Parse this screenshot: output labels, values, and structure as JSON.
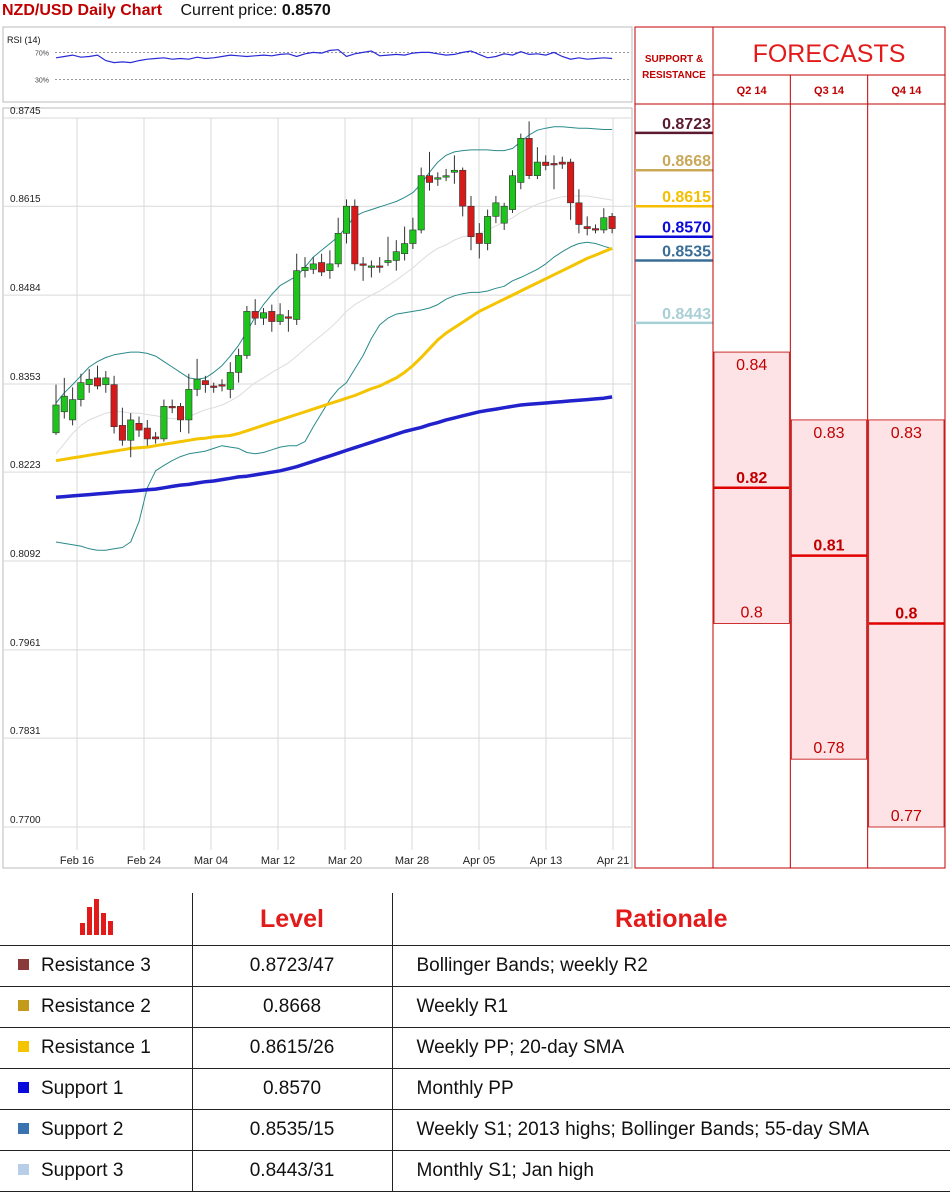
{
  "header": {
    "title": "NZD/USD Daily Chart",
    "price_label": "Current price:",
    "price_value": "0.8570"
  },
  "chart_data": {
    "type": "candlestick",
    "title": "NZD/USD Daily Chart",
    "ylim": [
      0.77,
      0.8745
    ],
    "y_ticks": [
      "0.8745",
      "0.8615",
      "0.8484",
      "0.8353",
      "0.8223",
      "0.8092",
      "0.7961",
      "0.7831",
      "0.7700"
    ],
    "x_ticks": [
      "Feb 16",
      "Feb 24",
      "Mar 04",
      "Mar 12",
      "Mar 20",
      "Mar 28",
      "Apr 05",
      "Apr 13",
      "Apr 21"
    ],
    "rsi": {
      "label": "RSI (14)",
      "levels": [
        "70%",
        "30%"
      ],
      "values": [
        62,
        64,
        66,
        63,
        64,
        66,
        58,
        55,
        56,
        55,
        58,
        60,
        61,
        62,
        60,
        61,
        60,
        63,
        61,
        62,
        64,
        66,
        65,
        64,
        65,
        66,
        65,
        67,
        68,
        64,
        68,
        70,
        69,
        73,
        74,
        64,
        68,
        70,
        72,
        65,
        66,
        67,
        66,
        69,
        70,
        70,
        68,
        66,
        67,
        70,
        72,
        67,
        62,
        64,
        68,
        66,
        71,
        67,
        68,
        66,
        70,
        64,
        60,
        62,
        60,
        61,
        62,
        61
      ]
    },
    "candles": [
      {
        "o": 0.8281,
        "c": 0.8322,
        "h": 0.8352,
        "l": 0.8278
      },
      {
        "o": 0.8312,
        "c": 0.8335,
        "h": 0.8362,
        "l": 0.8302
      },
      {
        "o": 0.83,
        "c": 0.833,
        "h": 0.8348,
        "l": 0.8292
      },
      {
        "o": 0.833,
        "c": 0.8355,
        "h": 0.8368,
        "l": 0.832
      },
      {
        "o": 0.8352,
        "c": 0.836,
        "h": 0.8375,
        "l": 0.834
      },
      {
        "o": 0.8362,
        "c": 0.835,
        "h": 0.838,
        "l": 0.8345
      },
      {
        "o": 0.8352,
        "c": 0.8362,
        "h": 0.8372,
        "l": 0.834
      },
      {
        "o": 0.8352,
        "c": 0.829,
        "h": 0.8365,
        "l": 0.828
      },
      {
        "o": 0.8292,
        "c": 0.827,
        "h": 0.8318,
        "l": 0.8262
      },
      {
        "o": 0.827,
        "c": 0.83,
        "h": 0.831,
        "l": 0.8245
      },
      {
        "o": 0.8295,
        "c": 0.8285,
        "h": 0.8305,
        "l": 0.8275
      },
      {
        "o": 0.8288,
        "c": 0.8272,
        "h": 0.83,
        "l": 0.8262
      },
      {
        "o": 0.8275,
        "c": 0.8272,
        "h": 0.8282,
        "l": 0.8265
      },
      {
        "o": 0.8272,
        "c": 0.832,
        "h": 0.833,
        "l": 0.8268
      },
      {
        "o": 0.832,
        "c": 0.8318,
        "h": 0.833,
        "l": 0.831
      },
      {
        "o": 0.832,
        "c": 0.83,
        "h": 0.8325,
        "l": 0.8282
      },
      {
        "o": 0.83,
        "c": 0.8345,
        "h": 0.8368,
        "l": 0.828
      },
      {
        "o": 0.8345,
        "c": 0.836,
        "h": 0.839,
        "l": 0.8335
      },
      {
        "o": 0.8358,
        "c": 0.8352,
        "h": 0.8365,
        "l": 0.834
      },
      {
        "o": 0.835,
        "c": 0.8348,
        "h": 0.8355,
        "l": 0.834
      },
      {
        "o": 0.8352,
        "c": 0.835,
        "h": 0.836,
        "l": 0.8342
      },
      {
        "o": 0.8345,
        "c": 0.837,
        "h": 0.8385,
        "l": 0.8332
      },
      {
        "o": 0.837,
        "c": 0.8395,
        "h": 0.8405,
        "l": 0.8355
      },
      {
        "o": 0.8395,
        "c": 0.846,
        "h": 0.8468,
        "l": 0.839
      },
      {
        "o": 0.846,
        "c": 0.845,
        "h": 0.8478,
        "l": 0.844
      },
      {
        "o": 0.845,
        "c": 0.8458,
        "h": 0.8465,
        "l": 0.844
      },
      {
        "o": 0.846,
        "c": 0.8445,
        "h": 0.847,
        "l": 0.843
      },
      {
        "o": 0.8445,
        "c": 0.8455,
        "h": 0.8472,
        "l": 0.844
      },
      {
        "o": 0.8452,
        "c": 0.845,
        "h": 0.8462,
        "l": 0.843
      },
      {
        "o": 0.8448,
        "c": 0.852,
        "h": 0.8545,
        "l": 0.844
      },
      {
        "o": 0.852,
        "c": 0.8525,
        "h": 0.854,
        "l": 0.851
      },
      {
        "o": 0.8522,
        "c": 0.853,
        "h": 0.854,
        "l": 0.8515
      },
      {
        "o": 0.8532,
        "c": 0.8518,
        "h": 0.8545,
        "l": 0.8512
      },
      {
        "o": 0.852,
        "c": 0.853,
        "h": 0.855,
        "l": 0.8508
      },
      {
        "o": 0.853,
        "c": 0.8575,
        "h": 0.8598,
        "l": 0.8525
      },
      {
        "o": 0.8575,
        "c": 0.8615,
        "h": 0.8625,
        "l": 0.856
      },
      {
        "o": 0.8615,
        "c": 0.853,
        "h": 0.8625,
        "l": 0.852
      },
      {
        "o": 0.853,
        "c": 0.8528,
        "h": 0.854,
        "l": 0.8505
      },
      {
        "o": 0.8525,
        "c": 0.8527,
        "h": 0.8535,
        "l": 0.851
      },
      {
        "o": 0.8527,
        "c": 0.8525,
        "h": 0.854,
        "l": 0.8517
      },
      {
        "o": 0.8532,
        "c": 0.8535,
        "h": 0.857,
        "l": 0.8527
      },
      {
        "o": 0.8535,
        "c": 0.8548,
        "h": 0.8565,
        "l": 0.852
      },
      {
        "o": 0.8545,
        "c": 0.856,
        "h": 0.8585,
        "l": 0.8535
      },
      {
        "o": 0.856,
        "c": 0.858,
        "h": 0.8598,
        "l": 0.8552
      },
      {
        "o": 0.858,
        "c": 0.866,
        "h": 0.8672,
        "l": 0.8575
      },
      {
        "o": 0.866,
        "c": 0.865,
        "h": 0.8695,
        "l": 0.8638
      },
      {
        "o": 0.8655,
        "c": 0.8657,
        "h": 0.8665,
        "l": 0.8645
      },
      {
        "o": 0.8658,
        "c": 0.866,
        "h": 0.867,
        "l": 0.8652
      },
      {
        "o": 0.8665,
        "c": 0.8668,
        "h": 0.869,
        "l": 0.8648
      },
      {
        "o": 0.8668,
        "c": 0.8615,
        "h": 0.8672,
        "l": 0.86
      },
      {
        "o": 0.8615,
        "c": 0.857,
        "h": 0.863,
        "l": 0.855
      },
      {
        "o": 0.8575,
        "c": 0.856,
        "h": 0.859,
        "l": 0.8538
      },
      {
        "o": 0.856,
        "c": 0.86,
        "h": 0.861,
        "l": 0.855
      },
      {
        "o": 0.86,
        "c": 0.862,
        "h": 0.863,
        "l": 0.859
      },
      {
        "o": 0.859,
        "c": 0.8615,
        "h": 0.862,
        "l": 0.858
      },
      {
        "o": 0.861,
        "c": 0.866,
        "h": 0.8668,
        "l": 0.8605
      },
      {
        "o": 0.865,
        "c": 0.8715,
        "h": 0.8722,
        "l": 0.864
      },
      {
        "o": 0.8715,
        "c": 0.866,
        "h": 0.874,
        "l": 0.8655
      },
      {
        "o": 0.866,
        "c": 0.868,
        "h": 0.8702,
        "l": 0.8655
      },
      {
        "o": 0.868,
        "c": 0.8675,
        "h": 0.869,
        "l": 0.8668
      },
      {
        "o": 0.8678,
        "c": 0.8676,
        "h": 0.869,
        "l": 0.864
      },
      {
        "o": 0.868,
        "c": 0.8677,
        "h": 0.8688,
        "l": 0.867
      },
      {
        "o": 0.868,
        "c": 0.862,
        "h": 0.8685,
        "l": 0.8595
      },
      {
        "o": 0.862,
        "c": 0.8588,
        "h": 0.864,
        "l": 0.8575
      },
      {
        "o": 0.8585,
        "c": 0.8582,
        "h": 0.86,
        "l": 0.8572
      },
      {
        "o": 0.8582,
        "c": 0.858,
        "h": 0.8588,
        "l": 0.8575
      },
      {
        "o": 0.858,
        "c": 0.8598,
        "h": 0.8612,
        "l": 0.8575
      },
      {
        "o": 0.86,
        "c": 0.8582,
        "h": 0.8605,
        "l": 0.8575
      }
    ],
    "ma20": [
      0.825,
      0.8265,
      0.828,
      0.8292,
      0.83,
      0.8305,
      0.831,
      0.8312,
      0.8312,
      0.831,
      0.831,
      0.8308,
      0.8306,
      0.8304,
      0.8302,
      0.8302,
      0.8305,
      0.831,
      0.8315,
      0.8318,
      0.8322,
      0.8328,
      0.8335,
      0.8345,
      0.8355,
      0.8362,
      0.837,
      0.8377,
      0.8384,
      0.8394,
      0.8405,
      0.8415,
      0.8425,
      0.8435,
      0.8447,
      0.846,
      0.847,
      0.8477,
      0.8484,
      0.849,
      0.8498,
      0.8506,
      0.8515,
      0.8524,
      0.8535,
      0.8545,
      0.8553,
      0.8558,
      0.8565,
      0.857,
      0.8572,
      0.8575,
      0.858,
      0.8586,
      0.8592,
      0.8598,
      0.8606,
      0.8612,
      0.8618,
      0.8622,
      0.8626,
      0.8629,
      0.863,
      0.863,
      0.863,
      0.8628,
      0.8626,
      0.8624
    ],
    "bb_upper": [
      0.8325,
      0.834,
      0.8352,
      0.8365,
      0.8378,
      0.8386,
      0.8392,
      0.8396,
      0.8398,
      0.84,
      0.84,
      0.8398,
      0.8394,
      0.8386,
      0.8378,
      0.837,
      0.8362,
      0.836,
      0.8362,
      0.837,
      0.838,
      0.8394,
      0.841,
      0.843,
      0.8452,
      0.847,
      0.8485,
      0.8498,
      0.8505,
      0.8512,
      0.8525,
      0.854,
      0.855,
      0.856,
      0.857,
      0.8585,
      0.86,
      0.8606,
      0.861,
      0.8614,
      0.8618,
      0.8622,
      0.8628,
      0.8635,
      0.8648,
      0.8665,
      0.868,
      0.869,
      0.8695,
      0.8697,
      0.8698,
      0.8698,
      0.8698,
      0.8697,
      0.8697,
      0.87,
      0.871,
      0.872,
      0.8727,
      0.873,
      0.8732,
      0.8732,
      0.8731,
      0.873,
      0.873,
      0.8729,
      0.8728,
      0.8728
    ],
    "bb_lower": [
      0.812,
      0.8118,
      0.8116,
      0.8114,
      0.811,
      0.8108,
      0.8108,
      0.811,
      0.8112,
      0.812,
      0.815,
      0.82,
      0.8225,
      0.8233,
      0.824,
      0.8246,
      0.825,
      0.8252,
      0.8254,
      0.8258,
      0.8262,
      0.826,
      0.8258,
      0.8252,
      0.825,
      0.8252,
      0.8256,
      0.826,
      0.8262,
      0.8262,
      0.8268,
      0.829,
      0.831,
      0.833,
      0.8345,
      0.8355,
      0.8375,
      0.8395,
      0.842,
      0.844,
      0.845,
      0.8456,
      0.8458,
      0.846,
      0.8462,
      0.8465,
      0.847,
      0.8478,
      0.8483,
      0.8486,
      0.8488,
      0.8488,
      0.849,
      0.8494,
      0.8497,
      0.8505,
      0.851,
      0.8516,
      0.8522,
      0.853,
      0.854,
      0.8548,
      0.8555,
      0.856,
      0.8562,
      0.856,
      0.8556,
      0.8552
    ],
    "sma55": [
      0.824,
      0.8242,
      0.8244,
      0.8246,
      0.8248,
      0.825,
      0.8252,
      0.8254,
      0.8256,
      0.8258,
      0.8259,
      0.826,
      0.8262,
      0.8264,
      0.8266,
      0.8268,
      0.827,
      0.8272,
      0.8273,
      0.8275,
      0.8276,
      0.8277,
      0.828,
      0.8284,
      0.8288,
      0.8292,
      0.8296,
      0.83,
      0.8304,
      0.8308,
      0.8312,
      0.8316,
      0.832,
      0.8324,
      0.8328,
      0.8332,
      0.8336,
      0.8341,
      0.8346,
      0.835,
      0.8356,
      0.8362,
      0.837,
      0.838,
      0.8392,
      0.8405,
      0.8418,
      0.8428,
      0.8436,
      0.8444,
      0.8452,
      0.846,
      0.8466,
      0.8472,
      0.8478,
      0.8484,
      0.849,
      0.8496,
      0.8502,
      0.8508,
      0.8514,
      0.852,
      0.8526,
      0.8532,
      0.8538,
      0.8543,
      0.8548,
      0.8553
    ],
    "sma200": [
      0.8186,
      0.8187,
      0.8188,
      0.8189,
      0.819,
      0.8191,
      0.8192,
      0.8193,
      0.8194,
      0.8195,
      0.8196,
      0.8197,
      0.8198,
      0.82,
      0.8202,
      0.8204,
      0.8205,
      0.8207,
      0.8209,
      0.821,
      0.8212,
      0.8214,
      0.8216,
      0.8217,
      0.8219,
      0.8221,
      0.8223,
      0.8225,
      0.8228,
      0.8231,
      0.8235,
      0.8239,
      0.8243,
      0.8247,
      0.8251,
      0.8255,
      0.8259,
      0.8263,
      0.8267,
      0.8271,
      0.8275,
      0.8279,
      0.8283,
      0.8286,
      0.8289,
      0.8293,
      0.8296,
      0.83,
      0.8303,
      0.8306,
      0.8309,
      0.8312,
      0.8314,
      0.8316,
      0.8318,
      0.832,
      0.8322,
      0.8323,
      0.8324,
      0.8325,
      0.8326,
      0.8327,
      0.8328,
      0.8329,
      0.833,
      0.8331,
      0.8332,
      0.8334
    ],
    "levels": [
      {
        "value": 0.8723,
        "label": "0.8723",
        "color": "#5b1a30"
      },
      {
        "value": 0.8668,
        "label": "0.8668",
        "color": "#c9a85a"
      },
      {
        "value": 0.8615,
        "label": "0.8615",
        "color": "#f5bf00"
      },
      {
        "value": 0.857,
        "label": "0.8570",
        "color": "#0a0adb"
      },
      {
        "value": 0.8535,
        "label": "0.8535",
        "color": "#3b6e96"
      },
      {
        "value": 0.8443,
        "label": "0.8443",
        "color": "#a9cfd6"
      }
    ]
  },
  "forecasts": {
    "title": "FORECASTS",
    "sr_label": [
      "SUPPORT &",
      "RESISTANCE"
    ],
    "quarters": [
      {
        "label": "Q2 14",
        "high": 0.84,
        "median": 0.82,
        "low": 0.8,
        "high_label": "0.84",
        "median_label": "0.82",
        "low_label": "0.8"
      },
      {
        "label": "Q3 14",
        "high": 0.83,
        "median": 0.81,
        "low": 0.78,
        "high_label": "0.83",
        "median_label": "0.81",
        "low_label": "0.78"
      },
      {
        "label": "Q4 14",
        "high": 0.83,
        "median": 0.8,
        "low": 0.77,
        "high_label": "0.83",
        "median_label": "0.8",
        "low_label": "0.77"
      }
    ]
  },
  "table": {
    "headers": [
      "Level",
      "Rationale"
    ],
    "rows": [
      {
        "name": "Resistance 3",
        "level": "0.8723/47",
        "rationale": "Bollinger Bands; weekly R2",
        "color": "#8b3a3a"
      },
      {
        "name": "Resistance 2",
        "level": "0.8668",
        "rationale": "Weekly R1",
        "color": "#c49a1b"
      },
      {
        "name": "Resistance 1",
        "level": "0.8615/26",
        "rationale": "Weekly PP; 20-day SMA",
        "color": "#f5c400"
      },
      {
        "name": "Support 1",
        "level": "0.8570",
        "rationale": "Monthly PP",
        "color": "#0a0adb"
      },
      {
        "name": "Support 2",
        "level": "0.8535/15",
        "rationale": "Weekly S1; 2013 highs; Bollinger Bands; 55-day SMA",
        "color": "#3b73b0"
      },
      {
        "name": "Support 3",
        "level": "0.8443/31",
        "rationale": "Monthly S1; Jan high",
        "color": "#b7cde8"
      }
    ]
  }
}
